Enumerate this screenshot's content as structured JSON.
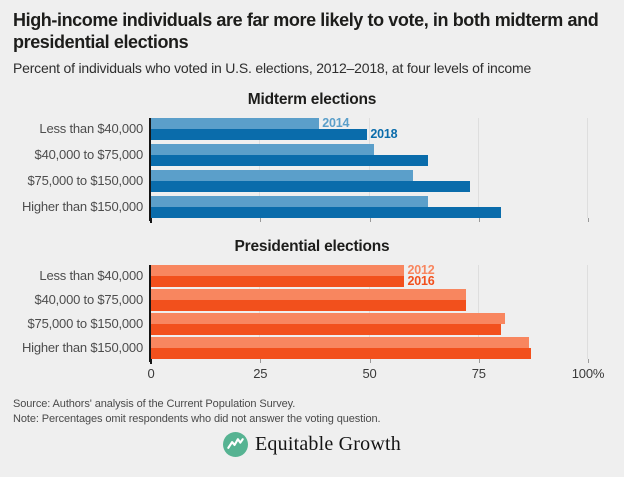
{
  "page": {
    "title": "High-income individuals are far more likely to vote, in both midterm and presidential elections",
    "subtitle": "Percent of individuals who voted in U.S. elections, 2012–2018, at four levels of income",
    "source": "Source: Authors' analysis of the Current Population Survey.",
    "note": "Note: Percentages omit respondents who did not answer the voting question.",
    "background_color": "#efefef",
    "logo": {
      "text": "Equitable Growth",
      "icon": "growth-line-chart-circle-icon",
      "icon_color": "#56b392"
    }
  },
  "chart_data": [
    {
      "type": "bar",
      "orientation": "horizontal",
      "title": "Midterm elections",
      "categories": [
        "Less than $40,000",
        "$40,000 to $75,000",
        "$75,000 to $150,000",
        "Higher than $150,000"
      ],
      "series": [
        {
          "name": "2014",
          "color": "#5b9fca",
          "values": [
            38.5,
            51,
            60,
            63.5
          ]
        },
        {
          "name": "2018",
          "color": "#0a6cab",
          "values": [
            49.5,
            63.5,
            73,
            80
          ]
        }
      ],
      "xlim": [
        0,
        100
      ],
      "ticks": [
        0,
        25,
        50,
        75,
        100
      ],
      "tick_labels": null,
      "grid": true,
      "legend_position": "end-of-first-bars",
      "row_gap": 4
    },
    {
      "type": "bar",
      "orientation": "horizontal",
      "title": "Presidential elections",
      "categories": [
        "Less than $40,000",
        "$40,000 to $75,000",
        "$75,000 to $150,000",
        "Higher than $150,000"
      ],
      "series": [
        {
          "name": "2012",
          "color": "#f8865f",
          "values": [
            58,
            72,
            81,
            86.5
          ]
        },
        {
          "name": "2016",
          "color": "#f2501c",
          "values": [
            58,
            72,
            80,
            87
          ]
        }
      ],
      "xlim": [
        0,
        100
      ],
      "ticks": [
        0,
        25,
        50,
        75,
        100
      ],
      "tick_labels": [
        "0",
        "25",
        "50",
        "75",
        "100%"
      ],
      "grid": true,
      "legend_position": "end-of-first-bars",
      "row_gap": 2
    }
  ]
}
